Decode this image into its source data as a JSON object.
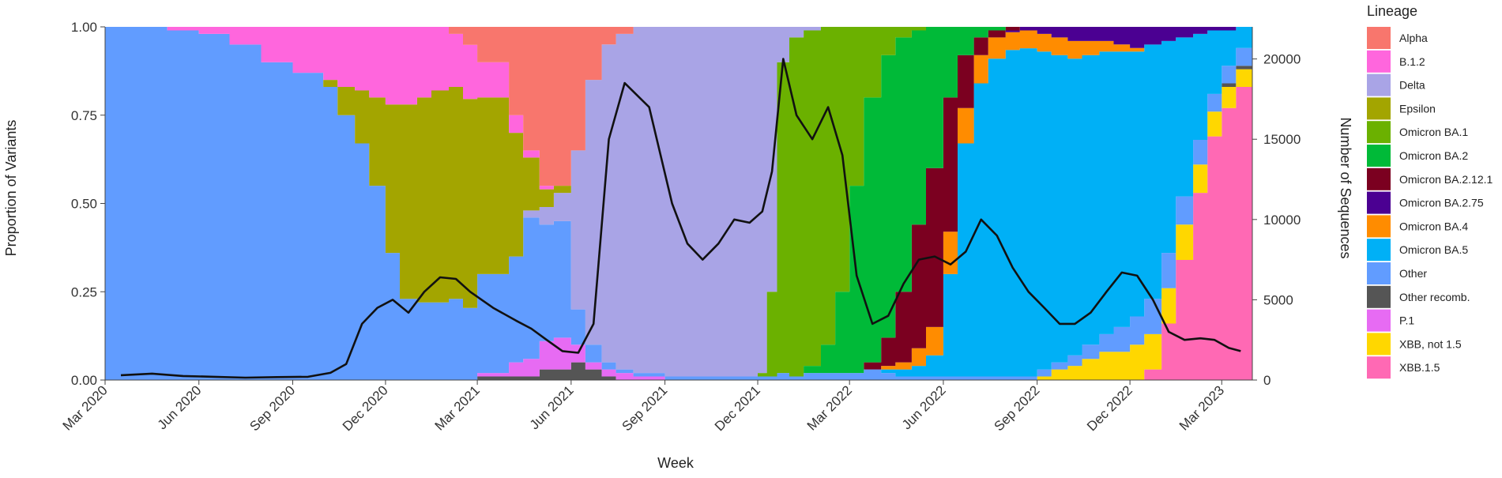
{
  "chart_data": {
    "type": "area",
    "stacked": true,
    "normalized": true,
    "xlabel": "Week",
    "ylabel_left": "Proportion of Variants",
    "ylabel_right": "Number of Sequences",
    "ylim_left": [
      0,
      1
    ],
    "ylim_right": [
      0,
      22000
    ],
    "y_ticks_left": [
      "0.00",
      "0.25",
      "0.50",
      "0.75",
      "1.00"
    ],
    "y_ticks_right": [
      "0",
      "5000",
      "10000",
      "15000",
      "20000"
    ],
    "x_tick_labels": [
      "Mar 2020",
      "Jun 2020",
      "Sep 2020",
      "Dec 2020",
      "Mar 2021",
      "Jun 2021",
      "Sep 2021",
      "Dec 2021",
      "Mar 2022",
      "Jun 2022",
      "Sep 2022",
      "Dec 2022",
      "Mar 2023"
    ],
    "x_range": [
      "2020-03",
      "2023-03"
    ],
    "legend_title": "Lineage",
    "legend_position": "right",
    "series": [
      {
        "name": "Alpha",
        "color": "#F8766D"
      },
      {
        "name": "B.1.2",
        "color": "#FF66DD"
      },
      {
        "name": "Delta",
        "color": "#A9A4E6"
      },
      {
        "name": "Epsilon",
        "color": "#A3A500"
      },
      {
        "name": "Omicron BA.1",
        "color": "#6BB100"
      },
      {
        "name": "Omicron BA.2",
        "color": "#00BA38"
      },
      {
        "name": "Omicron BA.2.12.1",
        "color": "#7B0020"
      },
      {
        "name": "Omicron BA.2.75",
        "color": "#4B0092"
      },
      {
        "name": "Omicron BA.4",
        "color": "#FF8C00"
      },
      {
        "name": "Omicron BA.5",
        "color": "#00B0F6"
      },
      {
        "name": "Other",
        "color": "#619CFF"
      },
      {
        "name": "Other recomb.",
        "color": "#555555"
      },
      {
        "name": "P.1",
        "color": "#E76BF3"
      },
      {
        "name": "XBB, not 1.5",
        "color": "#FFD700"
      },
      {
        "name": "XBB.1.5",
        "color": "#FF69B4"
      }
    ],
    "week_x": [
      "2020-03-01",
      "2020-04-01",
      "2020-05-01",
      "2020-06-01",
      "2020-07-01",
      "2020-08-01",
      "2020-09-01",
      "2020-10-01",
      "2020-10-15",
      "2020-11-01",
      "2020-11-15",
      "2020-12-01",
      "2020-12-15",
      "2021-01-01",
      "2021-01-15",
      "2021-02-01",
      "2021-02-15",
      "2021-03-01",
      "2021-04-01",
      "2021-04-15",
      "2021-05-01",
      "2021-05-15",
      "2021-06-01",
      "2021-06-15",
      "2021-07-01",
      "2021-07-15",
      "2021-08-01",
      "2021-09-01",
      "2021-09-15",
      "2021-10-01",
      "2021-10-15",
      "2021-11-01",
      "2021-11-15",
      "2021-12-01",
      "2021-12-10",
      "2021-12-20",
      "2022-01-01",
      "2022-01-15",
      "2022-02-01",
      "2022-02-15",
      "2022-03-01",
      "2022-03-15",
      "2022-04-01",
      "2022-04-15",
      "2022-05-01",
      "2022-05-15",
      "2022-06-01",
      "2022-06-15",
      "2022-07-01",
      "2022-07-15",
      "2022-08-01",
      "2022-08-15",
      "2022-09-01",
      "2022-09-15",
      "2022-10-01",
      "2022-10-15",
      "2022-11-01",
      "2022-11-15",
      "2022-12-01",
      "2022-12-15",
      "2023-01-01",
      "2023-01-15",
      "2023-02-01",
      "2023-02-15",
      "2023-03-01",
      "2023-03-15"
    ],
    "proportions": {
      "Alpha": [
        0,
        0,
        0,
        0,
        0,
        0,
        0,
        0,
        0,
        0,
        0,
        0,
        0,
        0,
        0,
        0.02,
        0.05,
        0.1,
        0.25,
        0.35,
        0.45,
        0.45,
        0.35,
        0.15,
        0.05,
        0.02,
        0,
        0,
        0,
        0,
        0,
        0,
        0,
        0,
        0,
        0,
        0,
        0,
        0,
        0,
        0,
        0,
        0,
        0,
        0,
        0,
        0,
        0,
        0,
        0,
        0,
        0,
        0,
        0,
        0,
        0,
        0,
        0,
        0,
        0,
        0,
        0,
        0,
        0,
        0,
        0
      ],
      "B.1.2": [
        0,
        0,
        0.01,
        0.02,
        0.05,
        0.1,
        0.13,
        0.15,
        0.17,
        0.18,
        0.2,
        0.22,
        0.22,
        0.2,
        0.18,
        0.15,
        0.15,
        0.1,
        0.05,
        0.02,
        0.01,
        0,
        0,
        0,
        0,
        0,
        0,
        0,
        0,
        0,
        0,
        0,
        0,
        0,
        0,
        0,
        0,
        0,
        0,
        0,
        0,
        0,
        0,
        0,
        0,
        0,
        0,
        0,
        0,
        0,
        0,
        0,
        0,
        0,
        0,
        0,
        0,
        0,
        0,
        0,
        0,
        0,
        0,
        0,
        0,
        0
      ],
      "Delta": [
        0,
        0,
        0,
        0,
        0,
        0,
        0,
        0,
        0,
        0,
        0,
        0,
        0,
        0,
        0,
        0,
        0,
        0,
        0,
        0.02,
        0.05,
        0.08,
        0.45,
        0.75,
        0.9,
        0.95,
        0.98,
        0.99,
        0.99,
        0.99,
        0.99,
        0.99,
        0.99,
        0.98,
        0.75,
        0.1,
        0.03,
        0.01,
        0,
        0,
        0,
        0,
        0,
        0,
        0,
        0,
        0,
        0,
        0,
        0,
        0,
        0,
        0,
        0,
        0,
        0,
        0,
        0,
        0,
        0,
        0,
        0,
        0,
        0,
        0,
        0
      ],
      "Epsilon": [
        0,
        0,
        0,
        0,
        0,
        0,
        0,
        0.02,
        0.08,
        0.15,
        0.25,
        0.42,
        0.55,
        0.58,
        0.6,
        0.6,
        0.58,
        0.5,
        0.35,
        0.15,
        0.05,
        0.02,
        0,
        0,
        0,
        0,
        0,
        0,
        0,
        0,
        0,
        0,
        0,
        0,
        0,
        0,
        0,
        0,
        0,
        0,
        0,
        0,
        0,
        0,
        0,
        0,
        0,
        0,
        0,
        0,
        0,
        0,
        0,
        0,
        0,
        0,
        0,
        0,
        0,
        0,
        0,
        0,
        0,
        0,
        0,
        0
      ],
      "Omicron BA.1": [
        0,
        0,
        0,
        0,
        0,
        0,
        0,
        0,
        0,
        0,
        0,
        0,
        0,
        0,
        0,
        0,
        0,
        0,
        0,
        0,
        0,
        0,
        0,
        0,
        0,
        0,
        0,
        0,
        0,
        0,
        0,
        0,
        0,
        0.01,
        0.24,
        0.88,
        0.96,
        0.95,
        0.9,
        0.75,
        0.45,
        0.2,
        0.08,
        0.03,
        0.01,
        0,
        0,
        0,
        0,
        0,
        0,
        0,
        0,
        0,
        0,
        0,
        0,
        0,
        0,
        0,
        0,
        0,
        0,
        0,
        0,
        0
      ],
      "Omicron BA.2": [
        0,
        0,
        0,
        0,
        0,
        0,
        0,
        0,
        0,
        0,
        0,
        0,
        0,
        0,
        0,
        0,
        0,
        0,
        0,
        0,
        0,
        0,
        0,
        0,
        0,
        0,
        0,
        0,
        0,
        0,
        0,
        0,
        0,
        0,
        0,
        0,
        0,
        0.02,
        0.08,
        0.23,
        0.53,
        0.75,
        0.8,
        0.72,
        0.55,
        0.4,
        0.2,
        0.08,
        0.03,
        0.01,
        0,
        0,
        0,
        0,
        0,
        0,
        0,
        0,
        0,
        0,
        0,
        0,
        0,
        0,
        0,
        0
      ],
      "Omicron BA.2.12.1": [
        0,
        0,
        0,
        0,
        0,
        0,
        0,
        0,
        0,
        0,
        0,
        0,
        0,
        0,
        0,
        0,
        0,
        0,
        0,
        0,
        0,
        0,
        0,
        0,
        0,
        0,
        0,
        0,
        0,
        0,
        0,
        0,
        0,
        0,
        0,
        0,
        0,
        0,
        0,
        0,
        0,
        0.02,
        0.08,
        0.2,
        0.35,
        0.45,
        0.38,
        0.15,
        0.05,
        0.02,
        0.01,
        0,
        0,
        0,
        0,
        0,
        0,
        0,
        0,
        0,
        0,
        0,
        0,
        0,
        0,
        0
      ],
      "Omicron BA.2.75": [
        0,
        0,
        0,
        0,
        0,
        0,
        0,
        0,
        0,
        0,
        0,
        0,
        0,
        0,
        0,
        0,
        0,
        0,
        0,
        0,
        0,
        0,
        0,
        0,
        0,
        0,
        0,
        0,
        0,
        0,
        0,
        0,
        0,
        0,
        0,
        0,
        0,
        0,
        0,
        0,
        0,
        0,
        0,
        0,
        0,
        0,
        0,
        0,
        0,
        0,
        0.005,
        0.01,
        0.02,
        0.03,
        0.04,
        0.04,
        0.04,
        0.05,
        0.06,
        0.05,
        0.04,
        0.03,
        0.02,
        0.01,
        0.01,
        0
      ],
      "Omicron BA.4": [
        0,
        0,
        0,
        0,
        0,
        0,
        0,
        0,
        0,
        0,
        0,
        0,
        0,
        0,
        0,
        0,
        0,
        0,
        0,
        0,
        0,
        0,
        0,
        0,
        0,
        0,
        0,
        0,
        0,
        0,
        0,
        0,
        0,
        0,
        0,
        0,
        0,
        0,
        0,
        0,
        0,
        0,
        0.01,
        0.02,
        0.05,
        0.08,
        0.12,
        0.1,
        0.08,
        0.06,
        0.05,
        0.05,
        0.05,
        0.05,
        0.05,
        0.04,
        0.03,
        0.02,
        0.01,
        0,
        0,
        0,
        0,
        0,
        0,
        0
      ],
      "Omicron BA.5": [
        0,
        0,
        0,
        0,
        0,
        0,
        0,
        0,
        0,
        0,
        0,
        0,
        0,
        0,
        0,
        0,
        0,
        0,
        0,
        0,
        0,
        0,
        0,
        0,
        0,
        0,
        0,
        0,
        0,
        0,
        0,
        0,
        0,
        0,
        0,
        0,
        0,
        0,
        0,
        0,
        0,
        0,
        0.01,
        0.02,
        0.03,
        0.06,
        0.29,
        0.66,
        0.83,
        0.9,
        0.92,
        0.92,
        0.9,
        0.87,
        0.84,
        0.82,
        0.8,
        0.78,
        0.75,
        0.72,
        0.6,
        0.45,
        0.3,
        0.18,
        0.1,
        0.06
      ],
      "Other": [
        1,
        1,
        0.99,
        0.98,
        0.95,
        0.9,
        0.87,
        0.83,
        0.75,
        0.67,
        0.55,
        0.36,
        0.23,
        0.22,
        0.22,
        0.23,
        0.2,
        0.28,
        0.3,
        0.4,
        0.33,
        0.33,
        0.1,
        0.05,
        0.02,
        0.01,
        0.01,
        0.01,
        0.01,
        0.01,
        0.01,
        0.01,
        0.01,
        0.01,
        0.01,
        0.02,
        0.01,
        0.02,
        0.02,
        0.02,
        0.02,
        0.03,
        0.02,
        0.01,
        0.01,
        0.01,
        0.01,
        0.01,
        0.01,
        0.01,
        0.01,
        0.01,
        0.02,
        0.02,
        0.03,
        0.04,
        0.05,
        0.07,
        0.08,
        0.1,
        0.1,
        0.08,
        0.07,
        0.05,
        0.05,
        0.05
      ],
      "Other recomb.": [
        0,
        0,
        0,
        0,
        0,
        0,
        0,
        0,
        0,
        0,
        0,
        0,
        0,
        0,
        0,
        0,
        0,
        0.01,
        0.01,
        0.01,
        0.03,
        0.03,
        0.05,
        0.03,
        0.01,
        0,
        0,
        0,
        0,
        0,
        0,
        0,
        0,
        0,
        0,
        0,
        0,
        0,
        0,
        0,
        0,
        0,
        0,
        0,
        0,
        0,
        0,
        0,
        0,
        0,
        0,
        0,
        0,
        0,
        0,
        0,
        0,
        0,
        0,
        0,
        0,
        0,
        0,
        0,
        0.01,
        0.01
      ],
      "P.1": [
        0,
        0,
        0,
        0,
        0,
        0,
        0,
        0,
        0,
        0,
        0,
        0,
        0,
        0,
        0,
        0,
        0,
        0.01,
        0.04,
        0.05,
        0.08,
        0.09,
        0.05,
        0.02,
        0.02,
        0.02,
        0.01,
        0,
        0,
        0,
        0,
        0,
        0,
        0,
        0,
        0,
        0,
        0,
        0,
        0,
        0,
        0,
        0,
        0,
        0,
        0,
        0,
        0,
        0,
        0,
        0,
        0,
        0,
        0,
        0,
        0,
        0,
        0,
        0,
        0,
        0,
        0,
        0,
        0,
        0,
        0
      ],
      "XBB, not 1.5": [
        0,
        0,
        0,
        0,
        0,
        0,
        0,
        0,
        0,
        0,
        0,
        0,
        0,
        0,
        0,
        0,
        0,
        0,
        0,
        0,
        0,
        0,
        0,
        0,
        0,
        0,
        0,
        0,
        0,
        0,
        0,
        0,
        0,
        0,
        0,
        0,
        0,
        0,
        0,
        0,
        0,
        0,
        0,
        0,
        0,
        0,
        0,
        0,
        0,
        0,
        0,
        0,
        0.01,
        0.03,
        0.04,
        0.06,
        0.08,
        0.08,
        0.1,
        0.1,
        0.1,
        0.1,
        0.08,
        0.07,
        0.06,
        0.05
      ],
      "XBB.1.5": [
        0,
        0,
        0,
        0,
        0,
        0,
        0,
        0,
        0,
        0,
        0,
        0,
        0,
        0,
        0,
        0,
        0,
        0,
        0,
        0,
        0,
        0,
        0,
        0,
        0,
        0,
        0,
        0,
        0,
        0,
        0,
        0,
        0,
        0,
        0,
        0,
        0,
        0,
        0,
        0,
        0,
        0,
        0,
        0,
        0,
        0,
        0,
        0,
        0,
        0,
        0,
        0,
        0,
        0,
        0,
        0,
        0,
        0,
        0,
        0.03,
        0.16,
        0.34,
        0.53,
        0.69,
        0.77,
        0.83
      ]
    },
    "sequence_counts": [
      300,
      400,
      250,
      200,
      150,
      180,
      200,
      450,
      1000,
      3500,
      4500,
      5000,
      4200,
      5500,
      6400,
      6300,
      5500,
      4500,
      3700,
      3200,
      2500,
      1800,
      1700,
      3500,
      15000,
      18500,
      17000,
      11000,
      8500,
      7500,
      8500,
      10000,
      9800,
      10500,
      13000,
      20000,
      16500,
      15000,
      17000,
      14000,
      6500,
      3500,
      4000,
      6000,
      7500,
      7700,
      7200,
      8000,
      10000,
      9000,
      7000,
      5500,
      4500,
      3500,
      3500,
      4200,
      5500,
      6700,
      6500,
      5000,
      3000,
      2500,
      2600,
      2500,
      2000,
      1800
    ]
  }
}
